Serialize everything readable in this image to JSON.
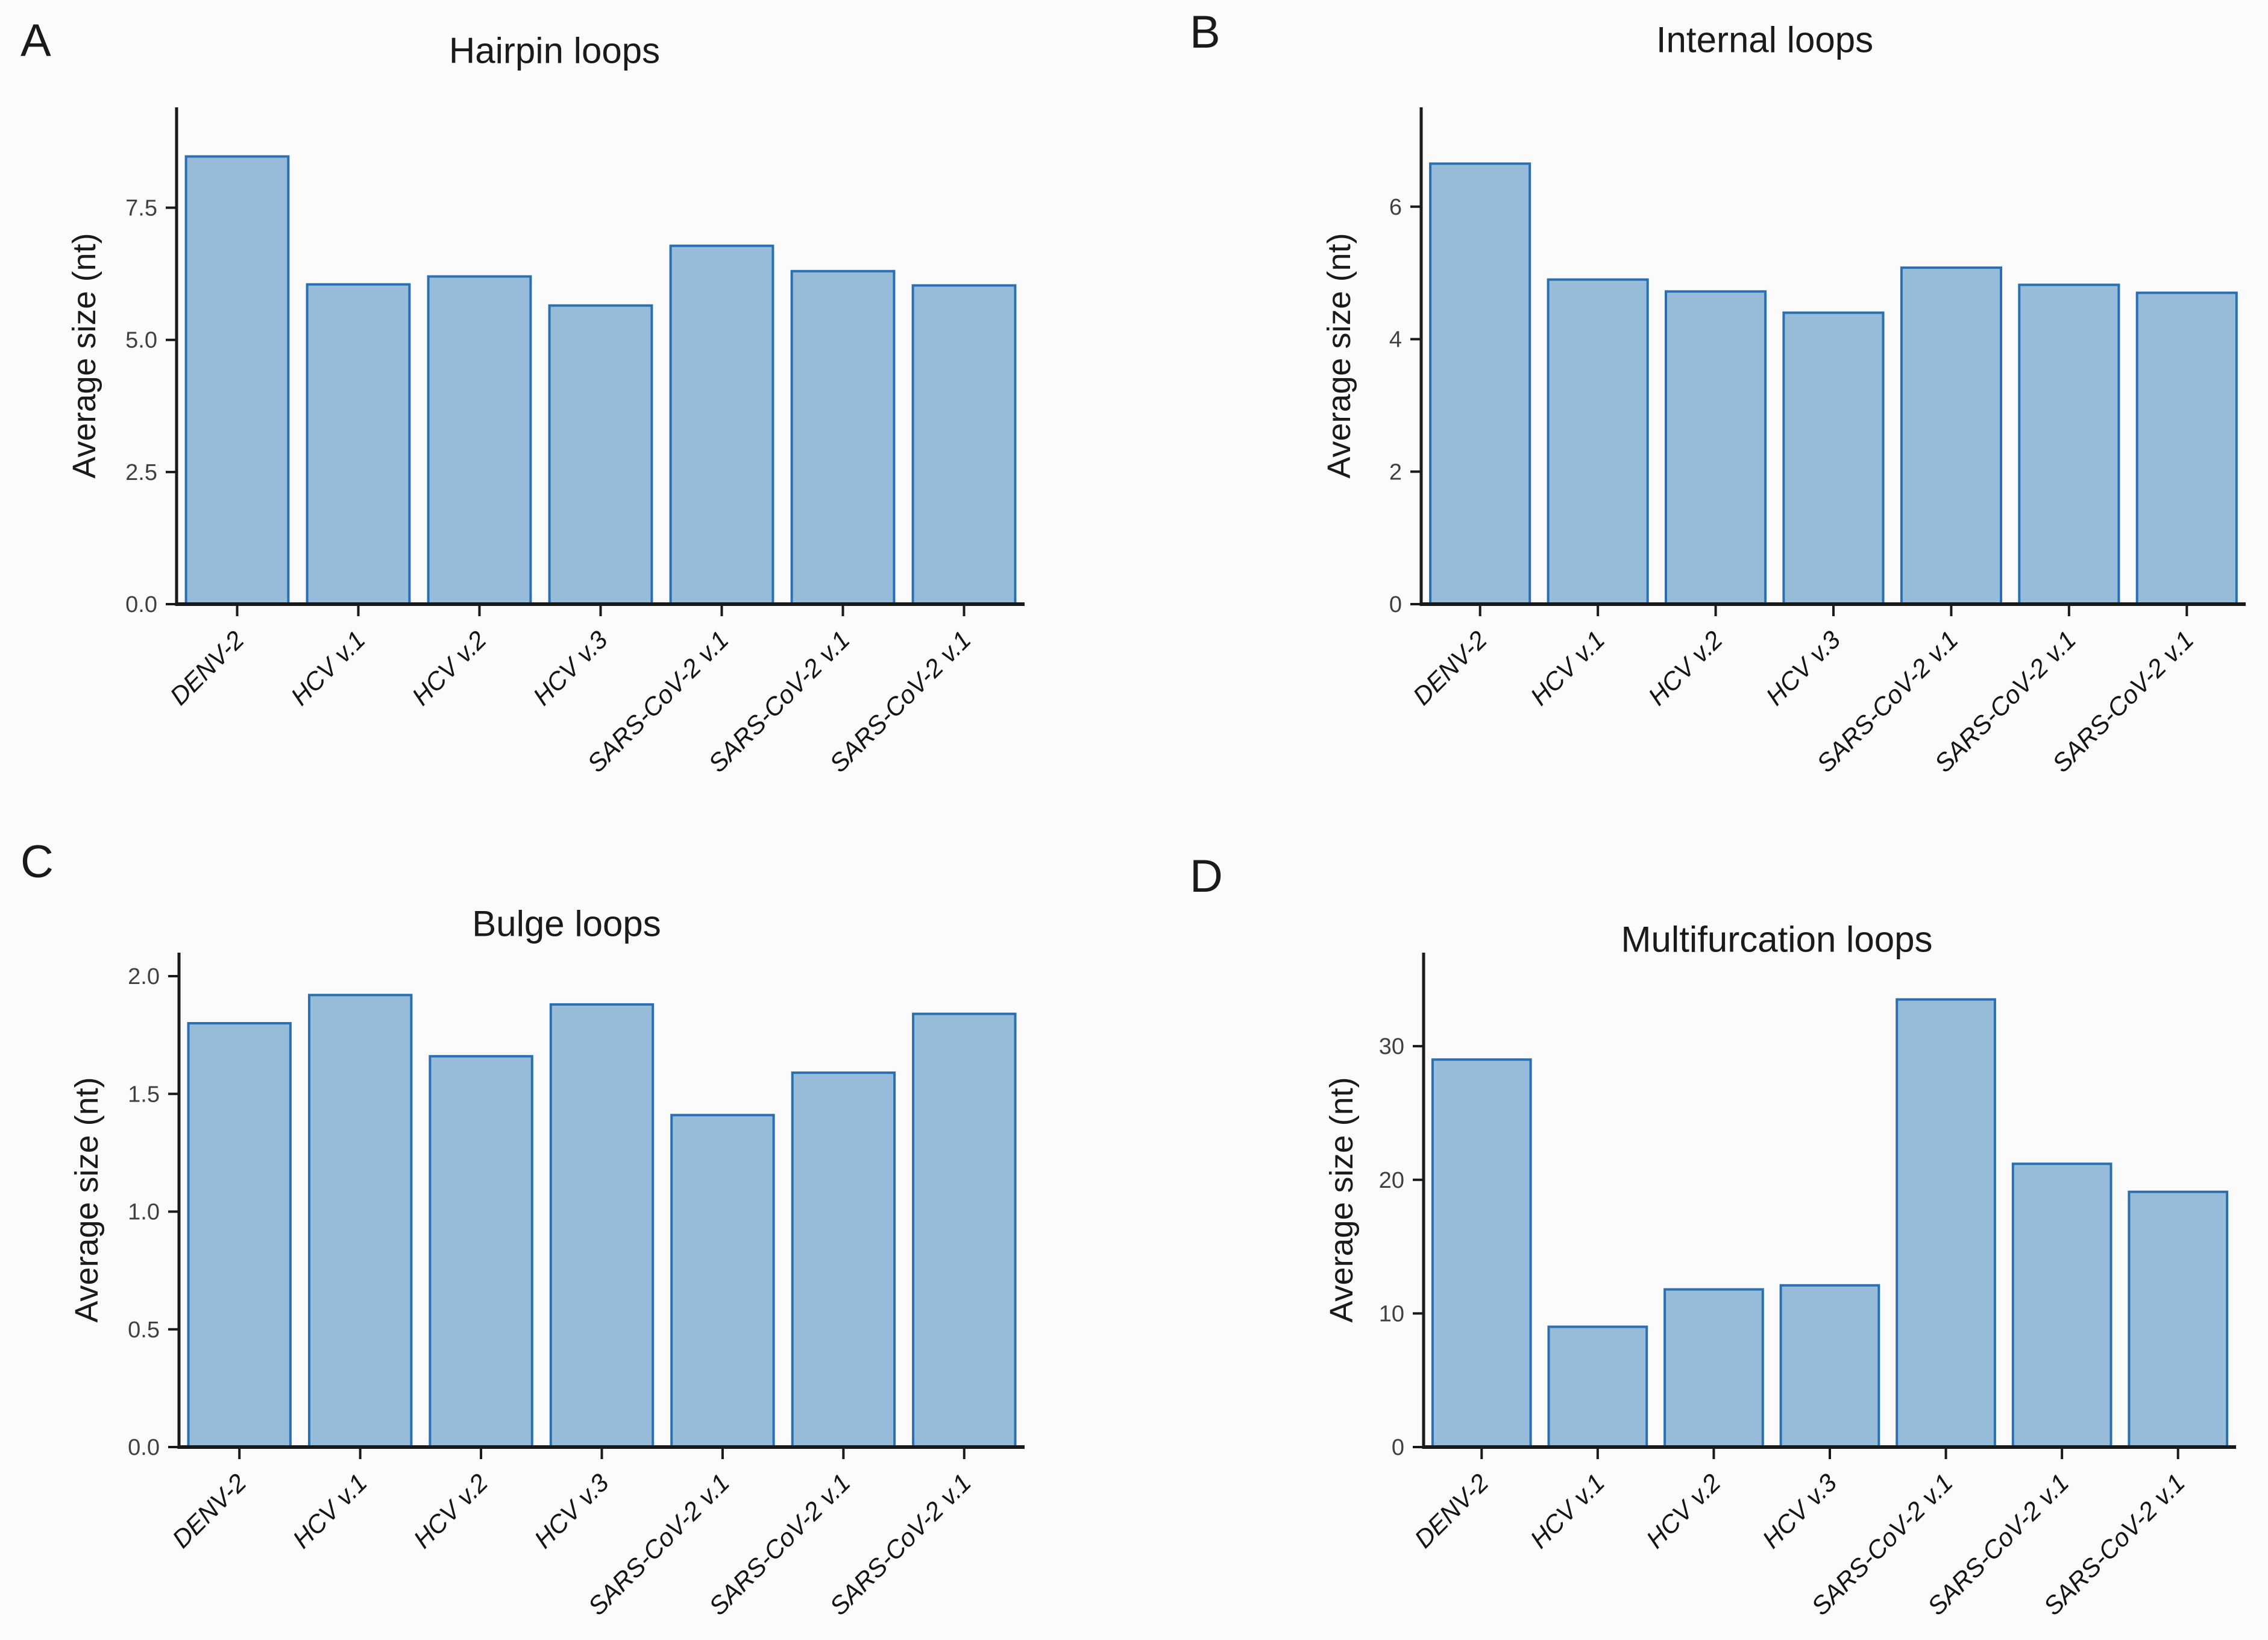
{
  "figure": {
    "ylabel": "Average size (nt)",
    "colors": {
      "background": "#fbfbfb",
      "bar_fill": "#97bcda",
      "bar_stroke": "#2a70b0",
      "axis": "#1a1a1a",
      "ytick_text": "#404040",
      "xtick_text": "#141414",
      "title_text": "#1a1a1a"
    }
  },
  "chart_data": [
    {
      "panel_label": "A",
      "type": "bar",
      "title": "Hairpin loops",
      "ylabel": "Average size (nt)",
      "xlabel": "",
      "categories": [
        "DENV-2",
        "HCV v.1",
        "HCV v.2",
        "HCV v.3",
        "SARS-CoV-2 v.1",
        "SARS-CoV-2 v.1",
        "SARS-CoV-2 v.1"
      ],
      "values": [
        8.47,
        6.05,
        6.2,
        5.65,
        6.78,
        6.3,
        6.03
      ],
      "yticks": [
        0,
        2.5,
        5,
        7.5
      ],
      "ytick_labels": [
        "0.0",
        "2.5",
        "5.0",
        "7.5"
      ],
      "ylim": [
        0,
        9.4
      ],
      "grid": false,
      "legend": false
    },
    {
      "panel_label": "B",
      "type": "bar",
      "title": "Internal loops",
      "ylabel": "Average size (nt)",
      "xlabel": "",
      "categories": [
        "DENV-2",
        "HCV v.1",
        "HCV v.2",
        "HCV v.3",
        "SARS-CoV-2 v.1",
        "SARS-CoV-2 v.1",
        "SARS-CoV-2 v.1"
      ],
      "values": [
        6.65,
        4.9,
        4.72,
        4.4,
        5.08,
        4.82,
        4.7
      ],
      "yticks": [
        0,
        2,
        4,
        6
      ],
      "ytick_labels": [
        "0",
        "2",
        "4",
        "6"
      ],
      "ylim": [
        0,
        7.5
      ],
      "grid": false,
      "legend": false
    },
    {
      "panel_label": "C",
      "type": "bar",
      "title": "Bulge loops",
      "ylabel": "Average size (nt)",
      "xlabel": "",
      "categories": [
        "DENV-2",
        "HCV v.1",
        "HCV v.2",
        "HCV v.3",
        "SARS-CoV-2 v.1",
        "SARS-CoV-2 v.1",
        "SARS-CoV-2 v.1"
      ],
      "values": [
        1.8,
        1.92,
        1.66,
        1.88,
        1.41,
        1.59,
        1.84
      ],
      "yticks": [
        0,
        0.5,
        1,
        1.5,
        2
      ],
      "ytick_labels": [
        "0.0",
        "0.5",
        "1.0",
        "1.5",
        "2.0"
      ],
      "ylim": [
        0,
        2.1
      ],
      "grid": false,
      "legend": false
    },
    {
      "panel_label": "D",
      "type": "bar",
      "title": "Multifurcation loops",
      "ylabel": "Average size (nt)",
      "xlabel": "",
      "categories": [
        "DENV-2",
        "HCV v.1",
        "HCV v.2",
        "HCV v.3",
        "SARS-CoV-2 v.1",
        "SARS-CoV-2 v.1",
        "SARS-CoV-2 v.1"
      ],
      "values": [
        29,
        9,
        11.8,
        12.1,
        33.5,
        21.2,
        19.1
      ],
      "yticks": [
        0,
        10,
        20,
        30
      ],
      "ytick_labels": [
        "0",
        "10",
        "20",
        "30"
      ],
      "ylim": [
        0,
        37
      ],
      "grid": false,
      "legend": false
    }
  ]
}
